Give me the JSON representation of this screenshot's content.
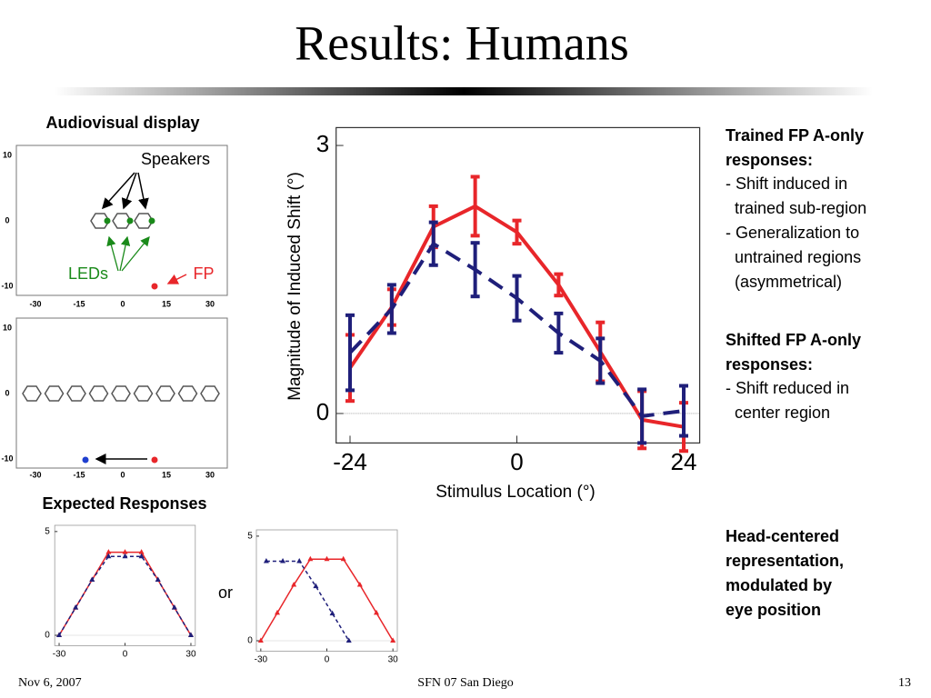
{
  "title": "Results: Humans",
  "display": {
    "heading": "Audiovisual display",
    "panels": [
      {
        "yticks": [
          10,
          0,
          -10
        ],
        "xticks": [
          -30,
          -15,
          0,
          15,
          30
        ]
      },
      {
        "yticks": [
          10,
          0,
          -10
        ],
        "xticks": [
          -30,
          -15,
          0,
          15,
          30
        ]
      }
    ],
    "speakers": "Speakers",
    "leds": "LEDs",
    "fp": "FP"
  },
  "expected": {
    "heading": "Expected Responses",
    "or": "or"
  },
  "chart_data": [
    {
      "type": "line",
      "x": [
        -24,
        -18,
        -12,
        -6,
        0,
        6,
        12,
        18,
        24
      ],
      "x_label": "Stimulus Location (°)",
      "y_label": "Magnitude of Induced Shift (°)",
      "xlim": [
        -26,
        26.3
      ],
      "ylim": [
        -0.33,
        3.2
      ],
      "xticks": [
        -24,
        0,
        24
      ],
      "yticks": [
        0,
        3
      ],
      "hline": 0,
      "series": [
        {
          "color": "#e8262a",
          "dashed": false,
          "values": [
            0.51,
            1.19,
            2.09,
            2.32,
            2.03,
            1.44,
            0.69,
            -0.07,
            -0.15
          ],
          "errors": [
            0.37,
            0.2,
            0.23,
            0.33,
            0.13,
            0.12,
            0.33,
            0.32,
            0.27
          ]
        },
        {
          "color": "#1f1f7a",
          "dashed": true,
          "values": [
            0.68,
            1.17,
            1.9,
            1.61,
            1.29,
            0.9,
            0.59,
            -0.03,
            0.03
          ],
          "errors": [
            0.42,
            0.27,
            0.24,
            0.3,
            0.25,
            0.22,
            0.25,
            0.3,
            0.28
          ]
        }
      ]
    },
    {
      "type": "line",
      "marker": "triangle",
      "xlim": [
        -32,
        32
      ],
      "ylim": [
        -0.5,
        5.3
      ],
      "xticks": [
        -30,
        0,
        30
      ],
      "yticks": [
        0,
        5
      ],
      "series": [
        {
          "color": "#e8262a",
          "dashed": false,
          "x": [
            -30,
            -22.5,
            -15,
            -7.5,
            0,
            7.5,
            15,
            22.5,
            30
          ],
          "values": [
            0,
            1.33,
            2.67,
            4,
            4,
            4,
            2.67,
            1.33,
            0
          ]
        },
        {
          "color": "#1f1f7a",
          "dashed": true,
          "x": [
            -30,
            -22.5,
            -15,
            -7.5,
            0,
            7.5,
            15,
            22.5,
            30
          ],
          "values": [
            0,
            1.33,
            2.67,
            3.8,
            3.8,
            3.8,
            2.67,
            1.33,
            0
          ]
        }
      ]
    },
    {
      "type": "line",
      "marker": "triangle",
      "xlim": [
        -32,
        32
      ],
      "ylim": [
        -0.5,
        5.3
      ],
      "xticks": [
        -30,
        0,
        30
      ],
      "yticks": [
        0,
        5
      ],
      "series": [
        {
          "color": "#e8262a",
          "dashed": false,
          "x": [
            -30,
            -22.5,
            -15,
            -7.5,
            0,
            7.5,
            15,
            22.5,
            30
          ],
          "values": [
            0,
            1.33,
            2.67,
            3.9,
            3.9,
            3.9,
            2.67,
            1.33,
            0
          ]
        },
        {
          "color": "#1f1f7a",
          "dashed": true,
          "x": [
            -27.5,
            -20,
            -12.5,
            -5,
            2.5,
            10
          ],
          "values": [
            3.8,
            3.8,
            3.8,
            2.6,
            1.3,
            0
          ]
        }
      ]
    }
  ],
  "notes": [
    {
      "heading": [
        "Trained FP A-only",
        "responses:"
      ],
      "lines": [
        "- Shift induced in",
        "  trained sub-region",
        "- Generalization to",
        "  untrained regions",
        "  (asymmetrical)"
      ]
    },
    {
      "heading": [
        "Shifted FP A-only",
        "responses:"
      ],
      "lines": [
        "- Shift reduced in",
        "  center region"
      ]
    },
    {
      "heading": [
        "Head-centered",
        "representation,",
        "modulated by",
        "eye position"
      ],
      "lines": []
    }
  ],
  "footer": {
    "date": "Nov  6, 2007",
    "event": "SFN 07 San Diego",
    "page": "13"
  }
}
